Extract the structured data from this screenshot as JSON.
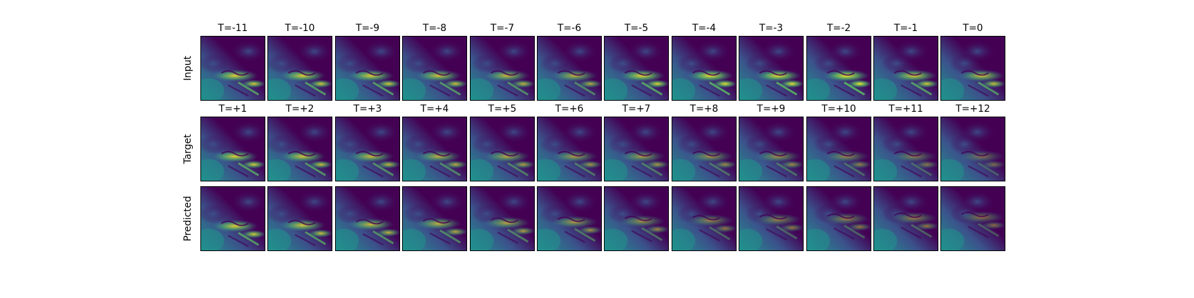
{
  "figure": {
    "rows": [
      {
        "label": "Input",
        "titles": [
          "T=-11",
          "T=-10",
          "T=-9",
          "T=-8",
          "T=-7",
          "T=-6",
          "T=-5",
          "T=-4",
          "T=-3",
          "T=-2",
          "T=-1",
          "T=0"
        ],
        "intensity": [
          0.85,
          0.85,
          0.85,
          0.8,
          0.75,
          0.7,
          0.9,
          0.95,
          0.95,
          1.0,
          0.85,
          0.8
        ]
      },
      {
        "label": "Target",
        "titles": [
          "T=+1",
          "T=+2",
          "T=+3",
          "T=+4",
          "T=+5",
          "T=+6",
          "T=+7",
          "T=+8",
          "T=+9",
          "T=+10",
          "T=+11",
          "T=+12"
        ],
        "intensity": [
          0.85,
          0.8,
          0.75,
          0.7,
          0.65,
          0.6,
          0.6,
          0.55,
          0.55,
          0.5,
          0.45,
          0.4
        ]
      },
      {
        "label": "Predicted",
        "titles": [],
        "intensity": [
          0.85,
          0.8,
          0.75,
          0.7,
          0.65,
          0.6,
          0.55,
          0.5,
          0.5,
          0.5,
          0.5,
          0.45
        ]
      }
    ],
    "colormap": {
      "name": "viridis",
      "stops": [
        "#440154",
        "#3b528b",
        "#21918c",
        "#5ec962",
        "#fde725"
      ]
    }
  }
}
